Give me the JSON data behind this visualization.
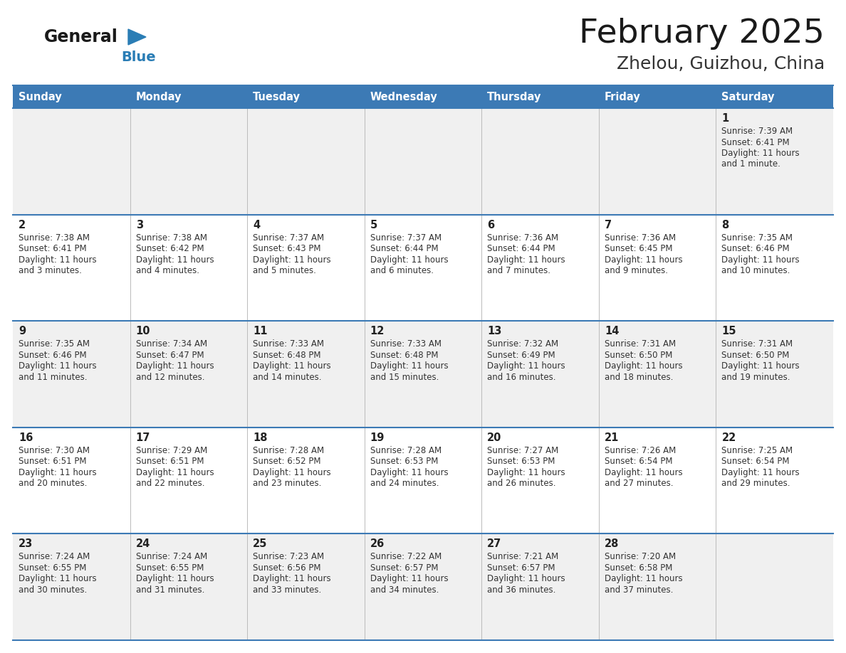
{
  "title": "February 2025",
  "subtitle": "Zhelou, Guizhou, China",
  "days_of_week": [
    "Sunday",
    "Monday",
    "Tuesday",
    "Wednesday",
    "Thursday",
    "Friday",
    "Saturday"
  ],
  "header_bg": "#3c7ab5",
  "header_text": "#ffffff",
  "row_bg_odd": "#f0f0f0",
  "row_bg_even": "#ffffff",
  "cell_text_color": "#333333",
  "day_num_color": "#222222",
  "border_color": "#3c7ab5",
  "title_color": "#1a1a1a",
  "subtitle_color": "#333333",
  "logo_general_color": "#1a1a1a",
  "logo_blue_color": "#2a7db5",
  "figsize": [
    11.88,
    9.18
  ],
  "calendar_data": [
    [
      null,
      null,
      null,
      null,
      null,
      null,
      {
        "day": 1,
        "sunrise": "7:39 AM",
        "sunset": "6:41 PM",
        "daylight": "11 hours and 1 minute."
      }
    ],
    [
      {
        "day": 2,
        "sunrise": "7:38 AM",
        "sunset": "6:41 PM",
        "daylight": "11 hours and 3 minutes."
      },
      {
        "day": 3,
        "sunrise": "7:38 AM",
        "sunset": "6:42 PM",
        "daylight": "11 hours and 4 minutes."
      },
      {
        "day": 4,
        "sunrise": "7:37 AM",
        "sunset": "6:43 PM",
        "daylight": "11 hours and 5 minutes."
      },
      {
        "day": 5,
        "sunrise": "7:37 AM",
        "sunset": "6:44 PM",
        "daylight": "11 hours and 6 minutes."
      },
      {
        "day": 6,
        "sunrise": "7:36 AM",
        "sunset": "6:44 PM",
        "daylight": "11 hours and 7 minutes."
      },
      {
        "day": 7,
        "sunrise": "7:36 AM",
        "sunset": "6:45 PM",
        "daylight": "11 hours and 9 minutes."
      },
      {
        "day": 8,
        "sunrise": "7:35 AM",
        "sunset": "6:46 PM",
        "daylight": "11 hours and 10 minutes."
      }
    ],
    [
      {
        "day": 9,
        "sunrise": "7:35 AM",
        "sunset": "6:46 PM",
        "daylight": "11 hours and 11 minutes."
      },
      {
        "day": 10,
        "sunrise": "7:34 AM",
        "sunset": "6:47 PM",
        "daylight": "11 hours and 12 minutes."
      },
      {
        "day": 11,
        "sunrise": "7:33 AM",
        "sunset": "6:48 PM",
        "daylight": "11 hours and 14 minutes."
      },
      {
        "day": 12,
        "sunrise": "7:33 AM",
        "sunset": "6:48 PM",
        "daylight": "11 hours and 15 minutes."
      },
      {
        "day": 13,
        "sunrise": "7:32 AM",
        "sunset": "6:49 PM",
        "daylight": "11 hours and 16 minutes."
      },
      {
        "day": 14,
        "sunrise": "7:31 AM",
        "sunset": "6:50 PM",
        "daylight": "11 hours and 18 minutes."
      },
      {
        "day": 15,
        "sunrise": "7:31 AM",
        "sunset": "6:50 PM",
        "daylight": "11 hours and 19 minutes."
      }
    ],
    [
      {
        "day": 16,
        "sunrise": "7:30 AM",
        "sunset": "6:51 PM",
        "daylight": "11 hours and 20 minutes."
      },
      {
        "day": 17,
        "sunrise": "7:29 AM",
        "sunset": "6:51 PM",
        "daylight": "11 hours and 22 minutes."
      },
      {
        "day": 18,
        "sunrise": "7:28 AM",
        "sunset": "6:52 PM",
        "daylight": "11 hours and 23 minutes."
      },
      {
        "day": 19,
        "sunrise": "7:28 AM",
        "sunset": "6:53 PM",
        "daylight": "11 hours and 24 minutes."
      },
      {
        "day": 20,
        "sunrise": "7:27 AM",
        "sunset": "6:53 PM",
        "daylight": "11 hours and 26 minutes."
      },
      {
        "day": 21,
        "sunrise": "7:26 AM",
        "sunset": "6:54 PM",
        "daylight": "11 hours and 27 minutes."
      },
      {
        "day": 22,
        "sunrise": "7:25 AM",
        "sunset": "6:54 PM",
        "daylight": "11 hours and 29 minutes."
      }
    ],
    [
      {
        "day": 23,
        "sunrise": "7:24 AM",
        "sunset": "6:55 PM",
        "daylight": "11 hours and 30 minutes."
      },
      {
        "day": 24,
        "sunrise": "7:24 AM",
        "sunset": "6:55 PM",
        "daylight": "11 hours and 31 minutes."
      },
      {
        "day": 25,
        "sunrise": "7:23 AM",
        "sunset": "6:56 PM",
        "daylight": "11 hours and 33 minutes."
      },
      {
        "day": 26,
        "sunrise": "7:22 AM",
        "sunset": "6:57 PM",
        "daylight": "11 hours and 34 minutes."
      },
      {
        "day": 27,
        "sunrise": "7:21 AM",
        "sunset": "6:57 PM",
        "daylight": "11 hours and 36 minutes."
      },
      {
        "day": 28,
        "sunrise": "7:20 AM",
        "sunset": "6:58 PM",
        "daylight": "11 hours and 37 minutes."
      },
      null
    ]
  ]
}
